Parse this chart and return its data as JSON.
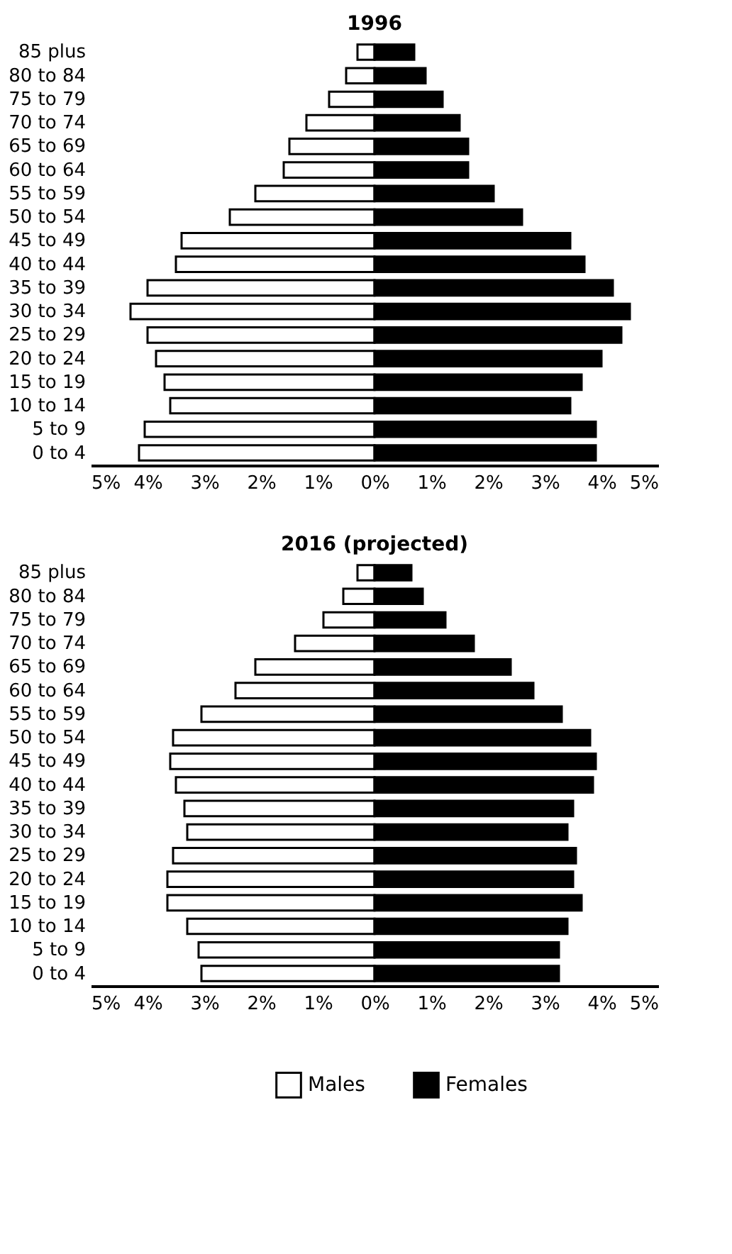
{
  "chart_data": [
    {
      "type": "bar",
      "orientation": "horizontal",
      "title": "1996",
      "categories": [
        "85 plus",
        "80 to 84",
        "75 to 79",
        "70 to 74",
        "65 to 69",
        "60 to 64",
        "55 to 59",
        "50 to 54",
        "45 to 49",
        "40 to 44",
        "35 to 39",
        "30 to 34",
        "25 to 29",
        "20 to 24",
        "15 to 19",
        "10 to 14",
        "5 to 9",
        "0 to 4"
      ],
      "series": [
        {
          "color": "#ffffff",
          "values": [
            -0.3,
            -0.5,
            -0.8,
            -1.2,
            -1.5,
            -1.6,
            -2.1,
            -2.55,
            -3.4,
            -3.5,
            -4.0,
            -4.3,
            -4.0,
            -3.85,
            -3.7,
            -3.6,
            -4.05,
            -4.15
          ]
        },
        {
          "color": "#000000",
          "values": [
            0.7,
            0.9,
            1.2,
            1.5,
            1.65,
            1.65,
            2.1,
            2.6,
            3.45,
            3.7,
            4.2,
            4.5,
            4.35,
            4.0,
            3.65,
            3.45,
            3.9,
            3.9
          ]
        }
      ],
      "xlim": [
        -5,
        5
      ],
      "xticks": [
        {
          "value": -5,
          "label": "5%"
        },
        {
          "value": -4,
          "label": "4%"
        },
        {
          "value": -3,
          "label": "3%"
        },
        {
          "value": -2,
          "label": "2%"
        },
        {
          "value": -1,
          "label": "1%"
        },
        {
          "value": 0,
          "label": "0%"
        },
        {
          "value": 1,
          "label": "1%"
        },
        {
          "value": 2,
          "label": "2%"
        },
        {
          "value": 3,
          "label": "3%"
        },
        {
          "value": 4,
          "label": "4%"
        },
        {
          "value": 5,
          "label": "5%"
        }
      ],
      "grid": false,
      "stacked": true,
      "legend": false
    },
    {
      "type": "bar",
      "orientation": "horizontal",
      "title": "2016 (projected)",
      "categories": [
        "85 plus",
        "80 to 84",
        "75 to 79",
        "70 to 74",
        "65 to 69",
        "60 to 64",
        "55 to 59",
        "50 to 54",
        "45 to 49",
        "40 to 44",
        "35 to 39",
        "30 to 34",
        "25 to 29",
        "20 to 24",
        "15 to 19",
        "10 to 14",
        "5 to 9",
        "0 to 4"
      ],
      "series": [
        {
          "name": "Males",
          "color": "#ffffff",
          "values": [
            -0.3,
            -0.55,
            -0.9,
            -1.4,
            -2.1,
            -2.45,
            -3.05,
            -3.55,
            -3.6,
            -3.5,
            -3.35,
            -3.3,
            -3.55,
            -3.65,
            -3.65,
            -3.3,
            -3.1,
            -3.05
          ]
        },
        {
          "name": "Females",
          "color": "#000000",
          "values": [
            0.65,
            0.85,
            1.25,
            1.75,
            2.4,
            2.8,
            3.3,
            3.8,
            3.9,
            3.85,
            3.5,
            3.4,
            3.55,
            3.5,
            3.65,
            3.4,
            3.25,
            3.25
          ]
        }
      ],
      "xlim": [
        -5,
        5
      ],
      "xticks": [
        {
          "value": -5,
          "label": "5%"
        },
        {
          "value": -4,
          "label": "4%"
        },
        {
          "value": -3,
          "label": "3%"
        },
        {
          "value": -2,
          "label": "2%"
        },
        {
          "value": -1,
          "label": "1%"
        },
        {
          "value": 0,
          "label": "0%"
        },
        {
          "value": 1,
          "label": "1%"
        },
        {
          "value": 2,
          "label": "2%"
        },
        {
          "value": 3,
          "label": "3%"
        },
        {
          "value": 4,
          "label": "4%"
        },
        {
          "value": 5,
          "label": "5%"
        }
      ],
      "grid": false,
      "stacked": true,
      "legend": "bottom"
    }
  ]
}
